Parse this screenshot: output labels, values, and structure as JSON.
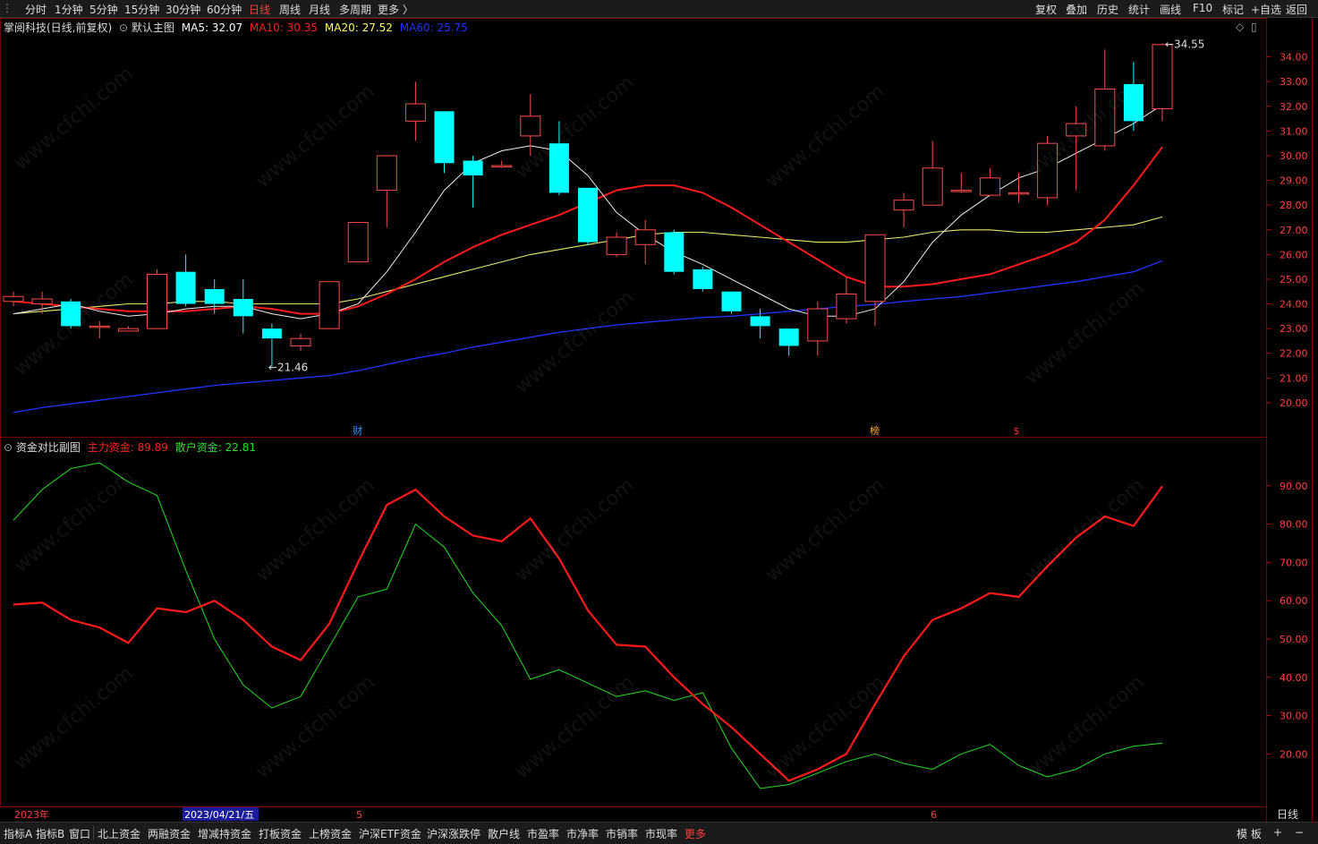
{
  "toolbar": {
    "periods": [
      "分时",
      "1分钟",
      "5分钟",
      "15分钟",
      "30分钟",
      "60分钟",
      "日线",
      "周线",
      "月线",
      "多周期",
      "更多 〉"
    ],
    "active_period": "日线",
    "right_buttons": [
      "复权",
      "叠加",
      "历史",
      "统计",
      "画线",
      "F10",
      "标记",
      "+自选",
      "返回"
    ]
  },
  "main_chart": {
    "stock_title": "掌阅科技(日线,前复权)",
    "indicator_name": "默认主图",
    "ma": [
      {
        "label": "MA5: 32.07",
        "color": "#ffffff"
      },
      {
        "label": "MA10: 30.35",
        "color": "#ff2020"
      },
      {
        "label": "MA20: 27.52",
        "color": "#ffff66"
      },
      {
        "label": "MA60: 25.75",
        "color": "#2233ff"
      }
    ],
    "price_ticks": [
      "34.00",
      "33.00",
      "32.00",
      "31.00",
      "30.00",
      "29.00",
      "28.00",
      "27.00",
      "26.00",
      "25.00",
      "24.00",
      "23.00",
      "22.00",
      "21.00",
      "20.00"
    ],
    "high_label": "34.55",
    "low_label": "21.46",
    "markers": [
      "财",
      "榜",
      "$"
    ]
  },
  "sub_chart": {
    "name": "资金对比副图",
    "main_label": "主力资金: 89.89",
    "retail_label": "散户资金: 22.81",
    "ticks": [
      "90.00",
      "80.00",
      "70.00",
      "60.00",
      "50.00",
      "40.00",
      "30.00",
      "20.00"
    ]
  },
  "chart_data": {
    "type": "candlestick",
    "candles": [
      [
        24.1,
        24.3,
        23.9,
        24.5
      ],
      [
        24.0,
        24.2,
        23.6,
        24.5
      ],
      [
        24.1,
        23.1,
        23.0,
        24.2
      ],
      [
        23.1,
        23.1,
        22.6,
        23.3
      ],
      [
        22.9,
        23.0,
        22.9,
        23.1
      ],
      [
        23.0,
        25.2,
        23.0,
        25.4
      ],
      [
        25.3,
        24.0,
        23.9,
        26.0
      ],
      [
        24.6,
        24.0,
        23.6,
        25.0
      ],
      [
        24.2,
        23.5,
        22.8,
        25.0
      ],
      [
        23.0,
        22.6,
        21.46,
        23.2
      ],
      [
        22.3,
        22.6,
        22.1,
        22.8
      ],
      [
        23.0,
        24.9,
        23.0,
        24.9
      ],
      [
        25.7,
        27.3,
        25.7,
        27.3
      ],
      [
        28.6,
        30.0,
        27.1,
        30.0
      ],
      [
        31.4,
        32.1,
        30.6,
        33.0
      ],
      [
        31.8,
        29.7,
        29.3,
        31.8
      ],
      [
        29.8,
        29.2,
        27.9,
        30.0
      ],
      [
        29.6,
        29.6,
        29.5,
        29.8
      ],
      [
        30.8,
        31.6,
        30.0,
        32.5
      ],
      [
        30.5,
        28.5,
        28.4,
        31.4
      ],
      [
        28.7,
        26.5,
        26.4,
        28.7
      ],
      [
        26.0,
        26.7,
        25.9,
        26.9
      ],
      [
        26.4,
        27.0,
        25.6,
        27.4
      ],
      [
        26.9,
        25.3,
        25.2,
        27.0
      ],
      [
        25.4,
        24.6,
        24.5,
        25.5
      ],
      [
        24.5,
        23.7,
        23.6,
        24.5
      ],
      [
        23.5,
        23.1,
        22.6,
        23.8
      ],
      [
        23.0,
        22.3,
        21.9,
        23.0
      ],
      [
        22.5,
        23.8,
        21.9,
        24.1
      ],
      [
        23.4,
        24.4,
        23.2,
        25.1
      ],
      [
        24.1,
        26.8,
        23.1,
        26.8
      ],
      [
        27.8,
        28.2,
        27.1,
        28.5
      ],
      [
        28.0,
        29.5,
        28.0,
        30.6
      ],
      [
        28.6,
        28.6,
        28.5,
        29.3
      ],
      [
        28.4,
        29.1,
        28.4,
        29.5
      ],
      [
        28.5,
        28.5,
        28.1,
        29.3
      ],
      [
        28.3,
        30.5,
        28.0,
        30.8
      ],
      [
        30.8,
        31.3,
        28.6,
        32.0
      ],
      [
        30.4,
        32.7,
        30.2,
        34.3
      ],
      [
        32.9,
        31.4,
        31.0,
        33.8
      ],
      [
        31.9,
        34.5,
        31.4,
        34.55
      ]
    ],
    "ma5": [
      23.6,
      23.8,
      24.0,
      23.7,
      23.5,
      23.6,
      23.8,
      23.9,
      23.9,
      23.6,
      23.4,
      23.6,
      24.0,
      25.3,
      26.9,
      28.6,
      29.7,
      30.2,
      30.4,
      30.2,
      29.2,
      27.7,
      26.8,
      26.1,
      25.6,
      25.0,
      24.4,
      23.8,
      23.5,
      23.5,
      23.8,
      24.9,
      26.5,
      27.6,
      28.4,
      29.1,
      29.5,
      30.1,
      30.7,
      31.3,
      32.07
    ],
    "ma10": [
      24.1,
      24.0,
      23.9,
      23.8,
      23.7,
      23.7,
      23.7,
      23.8,
      23.9,
      23.8,
      23.6,
      23.6,
      23.9,
      24.4,
      25.0,
      25.7,
      26.3,
      26.8,
      27.2,
      27.6,
      28.1,
      28.6,
      28.8,
      28.8,
      28.5,
      27.9,
      27.2,
      26.5,
      25.8,
      25.1,
      24.7,
      24.7,
      24.8,
      25.0,
      25.2,
      25.6,
      26.0,
      26.5,
      27.4,
      28.8,
      30.35
    ],
    "ma20": [
      23.6,
      23.7,
      23.8,
      23.9,
      24.0,
      24.0,
      24.1,
      24.1,
      24.0,
      24.0,
      24.0,
      24.0,
      24.2,
      24.5,
      24.8,
      25.1,
      25.4,
      25.7,
      26.0,
      26.2,
      26.4,
      26.6,
      26.8,
      26.9,
      26.9,
      26.8,
      26.7,
      26.6,
      26.5,
      26.5,
      26.6,
      26.7,
      26.9,
      27.0,
      27.0,
      26.9,
      26.9,
      27.0,
      27.1,
      27.2,
      27.52
    ],
    "ma60": [
      19.6,
      19.8,
      19.95,
      20.1,
      20.25,
      20.4,
      20.55,
      20.7,
      20.8,
      20.9,
      21.0,
      21.1,
      21.3,
      21.55,
      21.8,
      22.0,
      22.25,
      22.45,
      22.65,
      22.85,
      23.0,
      23.15,
      23.25,
      23.35,
      23.45,
      23.5,
      23.6,
      23.7,
      23.8,
      23.9,
      23.98,
      24.1,
      24.2,
      24.3,
      24.45,
      24.6,
      24.75,
      24.9,
      25.1,
      25.3,
      25.75
    ],
    "main_funds": [
      59,
      59.5,
      55,
      53,
      49,
      58,
      57,
      60,
      55,
      48,
      44.5,
      54,
      70,
      85,
      89,
      82,
      77,
      75.5,
      81.5,
      71,
      57.5,
      48.5,
      48,
      40,
      33,
      27,
      20,
      13,
      16,
      20,
      33,
      45.5,
      55,
      58,
      62,
      61,
      69,
      76.5,
      82,
      79.5,
      89.89
    ],
    "retail_funds": [
      81,
      89,
      94.5,
      96,
      91,
      87.5,
      68,
      50,
      38,
      32,
      35,
      48,
      61,
      63,
      80,
      74,
      62,
      53.5,
      39.5,
      42,
      38.5,
      35,
      36.5,
      34,
      36,
      21.5,
      11,
      12,
      15,
      18,
      20,
      17.5,
      16,
      20,
      22.5,
      17,
      14,
      16,
      20,
      22,
      22.81
    ],
    "ylim_main": [
      19.2,
      35.0
    ],
    "ylim_sub": [
      7,
      100
    ],
    "x_axis_labels": [
      "2023年",
      "2023/04/21/五",
      "5",
      "6"
    ],
    "period_label": "日线"
  },
  "bottom_tabs": [
    "指标A",
    "指标B",
    "窗口",
    "北上资金",
    "两融资金",
    "增减持资金",
    "打板资金",
    "上榜资金",
    "沪深ETF资金",
    "沪深涨跌停",
    "散户线",
    "市盈率",
    "市净率",
    "市销率",
    "市现率",
    "更多"
  ],
  "bottom_right": [
    "模 板",
    "+",
    "−"
  ],
  "watermark": "www.cfchi.com"
}
